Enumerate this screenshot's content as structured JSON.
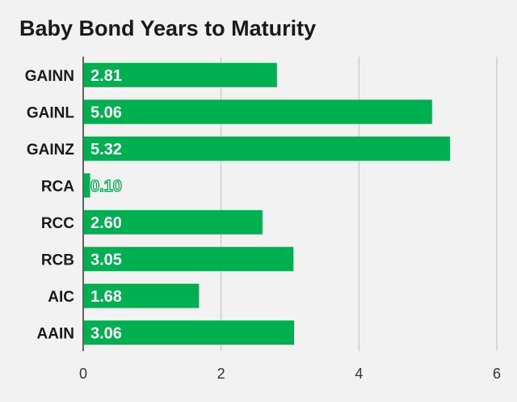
{
  "chart_data": {
    "type": "bar",
    "orientation": "horizontal",
    "title": "Baby Bond Years to Maturity",
    "categories": [
      "GAINN",
      "GAINL",
      "GAINZ",
      "RCA",
      "RCC",
      "RCB",
      "AIC",
      "AAIN"
    ],
    "values": [
      2.81,
      5.06,
      5.32,
      0.1,
      2.6,
      3.05,
      1.68,
      3.06
    ],
    "value_labels": [
      "2.81",
      "5.06",
      "5.32",
      "0.10",
      "2.60",
      "3.05",
      "1.68",
      "3.06"
    ],
    "xlabel": "",
    "ylabel": "",
    "xlim": [
      0,
      6
    ],
    "xticks": [
      0,
      2,
      4,
      6
    ],
    "xtick_labels": [
      "0",
      "2",
      "4",
      "6"
    ],
    "grid": true,
    "legend": "none",
    "colors": {
      "bar": "#00b050",
      "background": "#f2f2f2",
      "gridline": "#bfbfbf",
      "axis": "#333333",
      "label_inside": "#ffffff",
      "label_outside_fill": "#f2f2f2",
      "label_outside_stroke": "#00b050"
    }
  }
}
